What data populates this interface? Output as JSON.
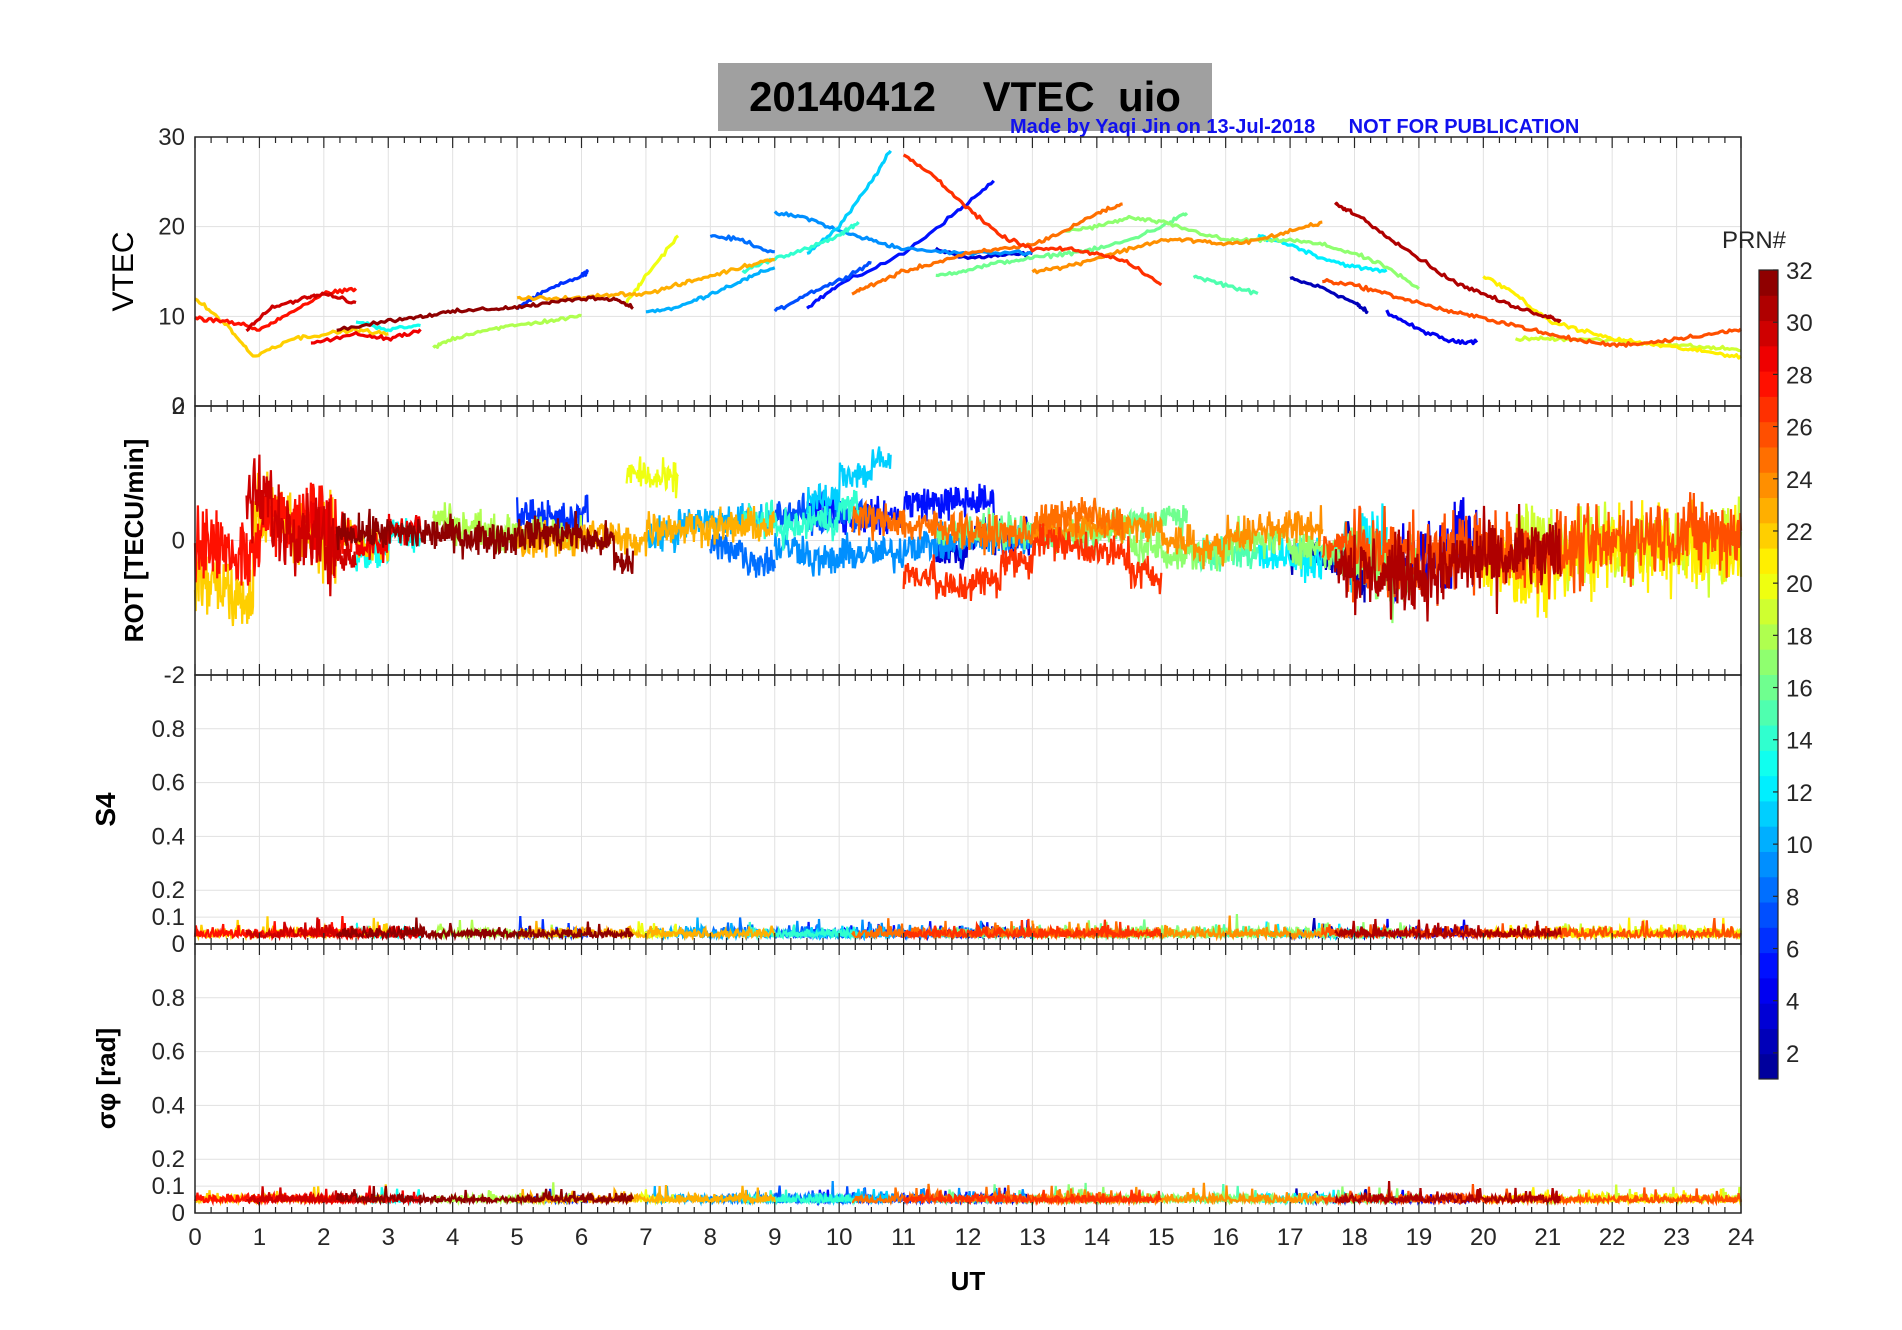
{
  "figure": {
    "title": "20140412    VTEC  uio",
    "credit": "Made by Yaqi Jin on 13-Jul-2018      NOT FOR PUBLICATION"
  },
  "colors": {
    "grid": "#e1e1e1",
    "axis": "#262626",
    "title_bg": "#a0a0a0",
    "credit": "#1010ee"
  },
  "colormap": [
    "#00008f",
    "#0000ff",
    "#007fff",
    "#00ffff",
    "#7fff7f",
    "#ffff00",
    "#ff7f00",
    "#ff0000",
    "#7f0000"
  ],
  "chart_data": [
    {
      "type": "line",
      "panel": "vtec",
      "title": "20140412    VTEC  uio",
      "xlabel": "",
      "ylabel": "VTEC",
      "xlim": [
        0,
        24
      ],
      "ylim": [
        0,
        30
      ],
      "yticks": [
        0,
        10,
        20,
        30
      ],
      "series": [
        {
          "name": "PRN 2",
          "prn": 2,
          "x": [
            17.0,
            17.5,
            18.0,
            18.2
          ],
          "y": [
            14.2,
            13.2,
            11.5,
            10.5
          ]
        },
        {
          "name": "PRN 3",
          "prn": 3,
          "x": [
            11.5,
            12.0,
            12.5,
            13.0
          ],
          "y": [
            17.5,
            16.5,
            16.8,
            17.0
          ]
        },
        {
          "name": "PRN 4",
          "prn": 4,
          "x": [
            18.5,
            19.0,
            19.5,
            19.9
          ],
          "y": [
            10.5,
            8.5,
            7.2,
            7.2
          ]
        },
        {
          "name": "PRN 5",
          "prn": 5,
          "x": [
            9.5,
            10.0,
            11.0,
            11.8,
            12.4
          ],
          "y": [
            11.0,
            13.5,
            17.0,
            21.5,
            25.0
          ]
        },
        {
          "name": "PRN 6",
          "prn": 6,
          "x": [
            5.0,
            5.5,
            6.0,
            6.1
          ],
          "y": [
            11.0,
            13.0,
            14.5,
            15.0
          ]
        },
        {
          "name": "PRN 7",
          "prn": 7,
          "x": [
            9.0,
            9.5,
            10.0,
            10.5
          ],
          "y": [
            10.5,
            12.5,
            14.0,
            16.0
          ]
        },
        {
          "name": "PRN 8",
          "prn": 8,
          "x": [
            8.0,
            8.5,
            9.0
          ],
          "y": [
            19.0,
            18.5,
            17.0
          ]
        },
        {
          "name": "PRN 9",
          "prn": 9,
          "x": [
            9.0,
            9.5,
            10.0,
            10.5,
            11.0,
            12.0,
            13.0
          ],
          "y": [
            21.5,
            21.0,
            19.5,
            18.5,
            17.5,
            17.0,
            17.2
          ]
        },
        {
          "name": "PRN 10",
          "prn": 10,
          "x": [
            7.0,
            7.5,
            8.0,
            8.5,
            9.0
          ],
          "y": [
            10.5,
            11.0,
            12.5,
            14.0,
            15.5
          ]
        },
        {
          "name": "PRN 11",
          "prn": 11,
          "x": [
            9.5,
            10.0,
            10.5,
            10.8
          ],
          "y": [
            17.0,
            20.0,
            25.0,
            28.5
          ]
        },
        {
          "name": "PRN 12",
          "prn": 12,
          "x": [
            16.5,
            17.0,
            17.5,
            18.0,
            18.5
          ],
          "y": [
            19.0,
            18.0,
            16.5,
            15.5,
            15.0
          ]
        },
        {
          "name": "PRN 13",
          "prn": 13,
          "x": [
            2.5,
            3.0,
            3.5
          ],
          "y": [
            9.5,
            8.5,
            9.0
          ]
        },
        {
          "name": "PRN 14",
          "prn": 14,
          "x": [
            8.5,
            9.0,
            9.5,
            10.0,
            10.3
          ],
          "y": [
            15.0,
            16.5,
            17.5,
            19.0,
            20.5
          ]
        },
        {
          "name": "PRN 15",
          "prn": 15,
          "x": [
            15.5,
            16.0,
            16.5
          ],
          "y": [
            14.5,
            13.5,
            12.5
          ]
        },
        {
          "name": "PRN 16",
          "prn": 16,
          "x": [
            11.5,
            12.0,
            12.5,
            13.0,
            13.5,
            14.0,
            14.5,
            15.0,
            15.4
          ],
          "y": [
            14.5,
            15.2,
            16.0,
            16.5,
            17.0,
            17.5,
            18.5,
            20.0,
            21.5
          ]
        },
        {
          "name": "PRN 17",
          "prn": 17,
          "x": [
            13.5,
            14.0,
            14.5,
            15.0,
            15.5,
            16.0,
            16.5,
            17.0,
            17.5,
            18.0,
            18.5,
            19.0
          ],
          "y": [
            19.5,
            20.0,
            21.0,
            20.5,
            19.5,
            18.5,
            18.5,
            18.5,
            18.0,
            17.0,
            15.5,
            13.0
          ]
        },
        {
          "name": "PRN 18",
          "prn": 18,
          "x": [
            3.7,
            4.0,
            4.5,
            5.0,
            5.5,
            6.0
          ],
          "y": [
            6.5,
            7.5,
            8.5,
            9.0,
            9.5,
            10.0
          ]
        },
        {
          "name": "PRN 19",
          "prn": 19,
          "x": [
            20.5,
            21.0,
            21.5,
            22.0,
            22.5,
            23.0,
            23.5,
            24.0
          ],
          "y": [
            7.5,
            7.5,
            7.5,
            7.3,
            7.0,
            6.8,
            6.5,
            6.3
          ]
        },
        {
          "name": "PRN 20",
          "prn": 20,
          "x": [
            6.7,
            7.0,
            7.5
          ],
          "y": [
            11.5,
            14.5,
            19.0
          ]
        },
        {
          "name": "PRN 21",
          "prn": 21,
          "x": [
            20.0,
            20.5,
            21.0,
            21.5,
            22.0,
            22.5,
            23.0,
            23.5,
            24.0
          ],
          "y": [
            14.5,
            12.5,
            9.5,
            8.5,
            7.5,
            7.0,
            6.5,
            6.0,
            5.5
          ]
        },
        {
          "name": "PRN 22",
          "prn": 22,
          "x": [
            0.0,
            0.5,
            0.9,
            1.5,
            2.0,
            2.5,
            3.0
          ],
          "y": [
            12.0,
            9.0,
            5.5,
            7.5,
            8.0,
            8.5,
            8.0
          ]
        },
        {
          "name": "PRN 23",
          "prn": 23,
          "x": [
            5.0,
            5.5,
            6.0,
            6.5,
            7.0,
            7.5,
            8.0,
            8.5,
            9.0
          ],
          "y": [
            12.0,
            12.0,
            12.0,
            12.5,
            12.5,
            13.5,
            14.5,
            15.5,
            16.5
          ]
        },
        {
          "name": "PRN 24",
          "prn": 24,
          "x": [
            13.0,
            13.5,
            14.0,
            14.5,
            15.0,
            15.5,
            16.0,
            16.5,
            17.0,
            17.5
          ],
          "y": [
            15.0,
            15.5,
            16.5,
            17.5,
            18.5,
            18.5,
            18.0,
            18.5,
            19.5,
            20.5
          ]
        },
        {
          "name": "PRN 25",
          "prn": 25,
          "x": [
            10.2,
            10.5,
            11.0,
            11.5,
            12.0,
            12.5,
            13.0,
            13.5,
            14.0,
            14.4
          ],
          "y": [
            12.5,
            13.5,
            15.0,
            16.0,
            17.0,
            17.5,
            18.0,
            19.5,
            21.5,
            22.5
          ]
        },
        {
          "name": "PRN 26",
          "prn": 26,
          "x": [
            17.5,
            18.0,
            18.5,
            19.0,
            19.5,
            20.0,
            20.5,
            21.0,
            21.5,
            22.0,
            22.5,
            23.0,
            23.5,
            24.0
          ],
          "y": [
            14.0,
            13.5,
            12.5,
            11.5,
            10.5,
            9.8,
            9.0,
            8.0,
            7.3,
            6.8,
            7.0,
            7.5,
            8.0,
            8.5
          ]
        },
        {
          "name": "PRN 27",
          "prn": 27,
          "x": [
            11.0,
            11.5,
            12.0,
            12.5,
            13.0,
            13.5,
            14.0,
            14.5,
            15.0
          ],
          "y": [
            28.0,
            25.5,
            22.0,
            19.0,
            17.5,
            17.5,
            17.0,
            16.0,
            13.5
          ]
        },
        {
          "name": "PRN 28",
          "prn": 28,
          "x": [
            0.0,
            0.5,
            1.0,
            1.5,
            2.0,
            2.5
          ],
          "y": [
            9.8,
            9.5,
            8.5,
            10.5,
            12.5,
            13.0
          ]
        },
        {
          "name": "PRN 29",
          "prn": 29,
          "x": [
            1.8,
            2.5,
            3.0,
            3.5
          ],
          "y": [
            7.0,
            8.0,
            7.5,
            8.5
          ]
        },
        {
          "name": "PRN 30",
          "prn": 30,
          "x": [
            0.8,
            1.2,
            1.7,
            2.0,
            2.5
          ],
          "y": [
            8.5,
            11.0,
            12.0,
            12.5,
            11.5
          ]
        },
        {
          "name": "PRN 31",
          "prn": 31,
          "x": [
            17.7,
            18.0,
            18.5,
            19.0,
            19.5,
            20.0,
            20.5,
            21.0,
            21.2
          ],
          "y": [
            22.5,
            21.5,
            19.0,
            16.5,
            14.0,
            12.5,
            11.0,
            10.0,
            9.5
          ]
        },
        {
          "name": "PRN 32",
          "prn": 32,
          "x": [
            2.2,
            3.0,
            3.5,
            4.0,
            4.5,
            5.0,
            5.5,
            6.0,
            6.5,
            6.8
          ],
          "y": [
            8.5,
            9.5,
            10.0,
            10.5,
            10.8,
            11.0,
            11.5,
            12.0,
            12.0,
            11.0
          ]
        }
      ]
    },
    {
      "type": "line",
      "panel": "rot",
      "ylabel": "ROT [TECU/min]",
      "xlim": [
        0,
        24
      ],
      "ylim": [
        -2,
        2
      ],
      "ytick_labels": [
        "-2",
        "0",
        "2"
      ],
      "note": "Noisy rate-of-TEC traces for all PRNs; mostly within about -0.5..+0.5 TECU/min, with a few excursions near -1 around 11 UT and up to about +1 near 10.8 UT."
    },
    {
      "type": "line",
      "panel": "s4",
      "ylabel": "S4",
      "xlim": [
        0,
        24
      ],
      "ylim": [
        0,
        1
      ],
      "yticks": [
        0,
        0.1,
        0.2,
        0.4,
        0.6,
        0.8
      ],
      "note": "Low-level scintillation index for all PRNs, typically 0.02–0.10."
    },
    {
      "type": "line",
      "panel": "sigma_phi",
      "ylabel": "σφ [rad]",
      "xlabel": "UT",
      "xlim": [
        0,
        24
      ],
      "xticks": [
        0,
        1,
        2,
        3,
        4,
        5,
        6,
        7,
        8,
        9,
        10,
        11,
        12,
        13,
        14,
        15,
        16,
        17,
        18,
        19,
        20,
        21,
        22,
        23,
        24
      ],
      "ylim": [
        0,
        1
      ],
      "yticks": [
        0,
        0.1,
        0.2,
        0.4,
        0.6,
        0.8
      ],
      "note": "Low-level phase scintillation for all PRNs, typically 0.03–0.10 rad."
    },
    {
      "type": "heatmap",
      "panel": "colorbar",
      "title": "PRN#",
      "clim": [
        1,
        32
      ],
      "tick_labels": [
        "2",
        "4",
        "6",
        "8",
        "10",
        "12",
        "14",
        "16",
        "18",
        "20",
        "22",
        "24",
        "26",
        "28",
        "30",
        "32"
      ]
    }
  ]
}
